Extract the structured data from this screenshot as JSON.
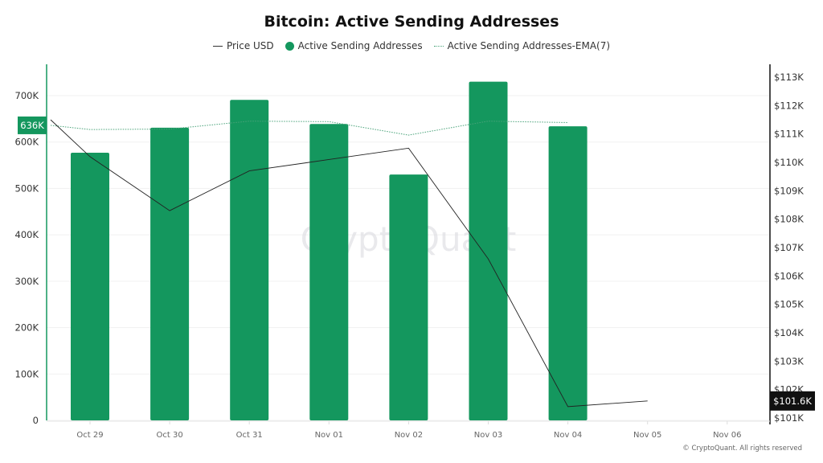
{
  "header": {
    "title": "Bitcoin: Active Sending Addresses"
  },
  "legend": {
    "items": [
      {
        "label": "Price USD"
      },
      {
        "label": "Active Sending Addresses"
      },
      {
        "label": "Active Sending Addresses-EMA(7)"
      }
    ]
  },
  "colors": {
    "bar": "#14975e",
    "price_line": "#222222",
    "ema_line": "#4aa37a",
    "left_axis": "#14975e",
    "right_axis": "#111111",
    "last_value_badge": "#111111"
  },
  "badges": {
    "left_value": "636K",
    "right_value": "$101.6K"
  },
  "watermark": "CryptoQuant",
  "footer": {
    "copyright": "© CryptoQuant. All rights reserved"
  },
  "chart_data": {
    "type": "bar",
    "title": "Bitcoin: Active Sending Addresses",
    "xlabel": "",
    "ylabel": "",
    "categories": [
      "Oct 29",
      "Oct 30",
      "Oct 31",
      "Nov 01",
      "Nov 02",
      "Nov 03",
      "Nov 04",
      "Nov 05",
      "Nov 06"
    ],
    "series": [
      {
        "name": "Active Sending Addresses",
        "type": "bar",
        "axis": "left",
        "values": [
          577000,
          631000,
          691000,
          639000,
          530000,
          730000,
          634000,
          null,
          null
        ]
      },
      {
        "name": "Active Sending Addresses-EMA(7)",
        "type": "line",
        "style": "dotted",
        "axis": "left",
        "x_start_value": 636000,
        "values": [
          627000,
          628000,
          645000,
          644000,
          615000,
          645000,
          642000,
          null,
          null
        ]
      },
      {
        "name": "Price USD",
        "type": "line",
        "axis": "right",
        "x_start_value": 111500,
        "values": [
          110200,
          108300,
          109700,
          110100,
          110500,
          106600,
          101400,
          101600,
          null
        ]
      }
    ],
    "left_axis": {
      "ticks": [
        "0",
        "100K",
        "200K",
        "300K",
        "400K",
        "500K",
        "600K",
        "700K"
      ],
      "ylim": [
        0,
        770000
      ]
    },
    "right_axis": {
      "ticks": [
        "$101K",
        "$102K",
        "$103K",
        "$104K",
        "$105K",
        "$106K",
        "$107K",
        "$108K",
        "$109K",
        "$110K",
        "$111K",
        "$112K",
        "$113K"
      ],
      "ylim": [
        101000,
        113000
      ]
    },
    "grid": true,
    "legend_position": "top"
  }
}
